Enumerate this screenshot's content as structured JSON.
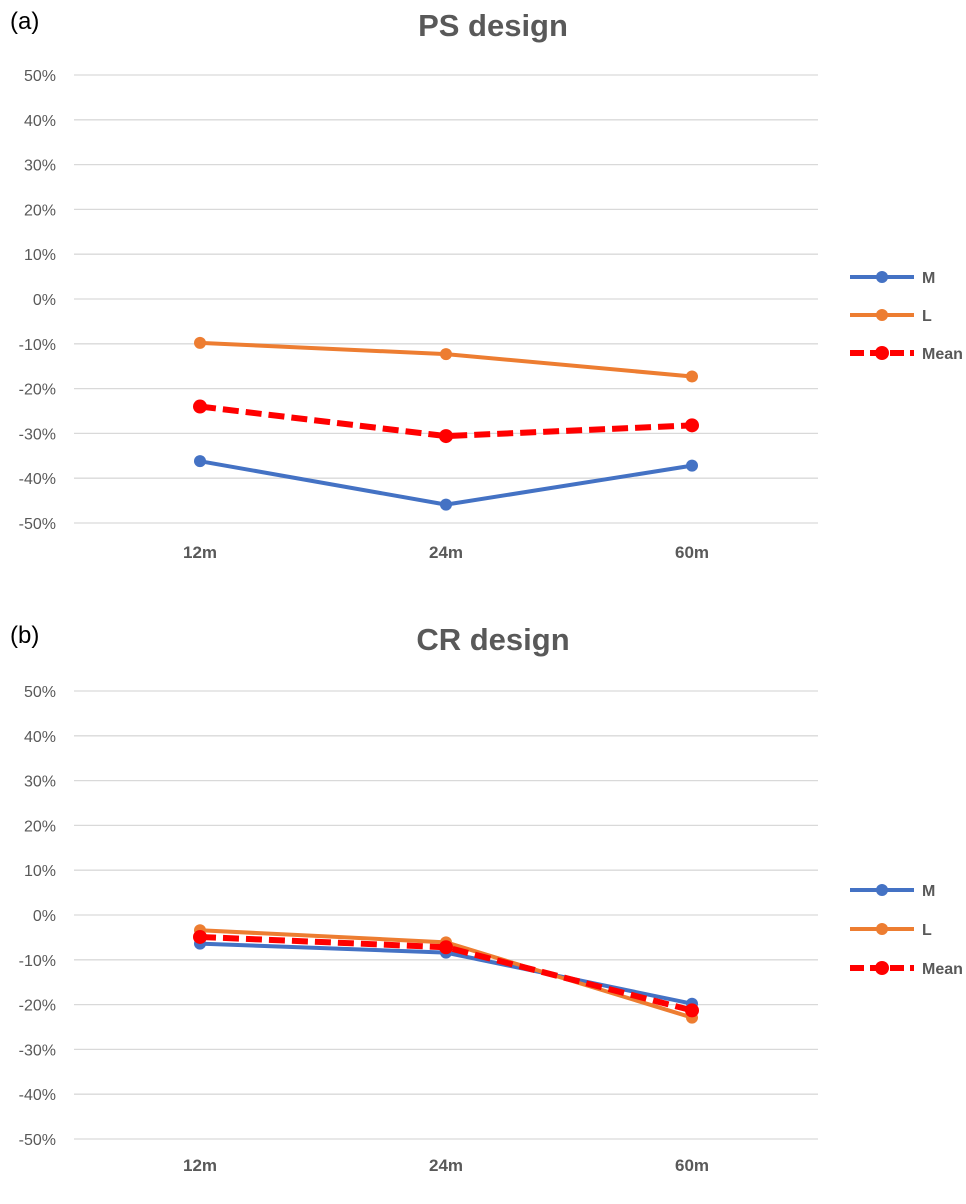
{
  "chart_data": [
    {
      "type": "line",
      "panel_label": "(a)",
      "title": "PS design",
      "categories": [
        "12m",
        "24m",
        "60m"
      ],
      "y_tick_labels": [
        "50%",
        "40%",
        "30%",
        "20%",
        "10%",
        "0%",
        "-10%",
        "-20%",
        "-30%",
        "-40%",
        "-50%"
      ],
      "ylim": [
        -50,
        50
      ],
      "y_unit": "%",
      "grid": true,
      "legend_position": "right",
      "series": [
        {
          "name": "M",
          "color": "#4472C4",
          "style": "solid",
          "values": [
            -36.2,
            -45.9,
            -37.2
          ]
        },
        {
          "name": "L",
          "color": "#ED7D31",
          "style": "solid",
          "values": [
            -9.8,
            -12.3,
            -17.3
          ]
        },
        {
          "name": "Mean",
          "color": "#FF0000",
          "style": "dashed",
          "values": [
            -24.0,
            -30.6,
            -28.2
          ]
        }
      ]
    },
    {
      "type": "line",
      "panel_label": "(b)",
      "title": "CR design",
      "categories": [
        "12m",
        "24m",
        "60m"
      ],
      "y_tick_labels": [
        "50%",
        "40%",
        "30%",
        "20%",
        "10%",
        "0%",
        "-10%",
        "-20%",
        "-30%",
        "-40%",
        "-50%"
      ],
      "ylim": [
        -50,
        50
      ],
      "y_unit": "%",
      "grid": true,
      "legend_position": "right",
      "series": [
        {
          "name": "M",
          "color": "#4472C4",
          "style": "solid",
          "values": [
            -6.4,
            -8.4,
            -19.8
          ]
        },
        {
          "name": "L",
          "color": "#ED7D31",
          "style": "solid",
          "values": [
            -3.4,
            -6.1,
            -22.9
          ]
        },
        {
          "name": "Mean",
          "color": "#FF0000",
          "style": "dashed",
          "values": [
            -4.9,
            -7.2,
            -21.3
          ]
        }
      ]
    }
  ]
}
